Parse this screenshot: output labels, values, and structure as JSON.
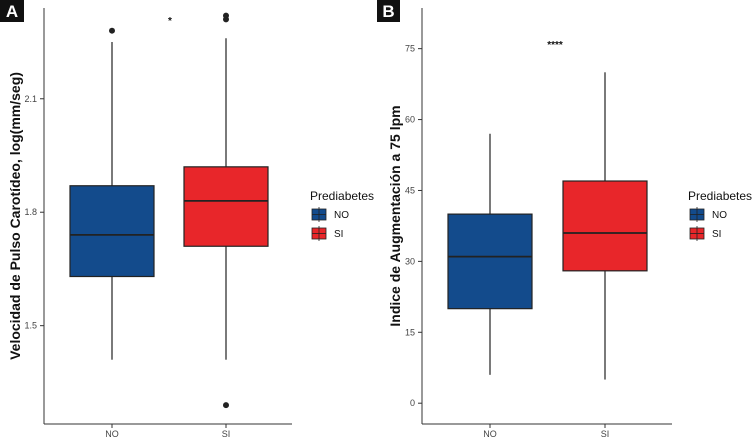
{
  "colors": {
    "NO": "#134b8c",
    "SI": "#e8262a",
    "median": "#222222",
    "axis": "#333333"
  },
  "chart_data": [
    {
      "type": "box",
      "panel_label": "A",
      "ylabel": "Velocidad de Pulso Carotídeo, log(mm/seg)",
      "categories": [
        "NO",
        "SI"
      ],
      "ylim": [
        1.24,
        2.34
      ],
      "yticks": [
        1.5,
        1.8,
        2.1
      ],
      "ytick_labels": [
        "1.5",
        "1.8",
        "2.1"
      ],
      "legend": {
        "title": "Prediabetes",
        "entries": [
          "NO",
          "SI"
        ],
        "position": "right"
      },
      "significance": "*",
      "boxes": [
        {
          "category": "NO",
          "whisker_low": 1.41,
          "q1": 1.63,
          "median": 1.74,
          "q3": 1.87,
          "whisker_high": 2.25,
          "outliers": [
            2.28
          ]
        },
        {
          "category": "SI",
          "whisker_low": 1.41,
          "q1": 1.71,
          "median": 1.83,
          "q3": 1.92,
          "whisker_high": 2.26,
          "outliers": [
            2.31,
            2.32,
            1.29
          ]
        }
      ]
    },
    {
      "type": "box",
      "panel_label": "B",
      "ylabel": "Indice de Augmentación a 75 lpm",
      "categories": [
        "NO",
        "SI"
      ],
      "ylim": [
        -4.4,
        83.6
      ],
      "yticks": [
        0,
        15,
        30,
        45,
        60,
        75
      ],
      "ytick_labels": [
        "0",
        "15",
        "30",
        "45",
        "60",
        "75"
      ],
      "legend": {
        "title": "Prediabetes",
        "entries": [
          "NO",
          "SI"
        ],
        "position": "right"
      },
      "significance": "****",
      "boxes": [
        {
          "category": "NO",
          "whisker_low": 6,
          "q1": 20,
          "median": 31,
          "q3": 40,
          "whisker_high": 57,
          "outliers": []
        },
        {
          "category": "SI",
          "whisker_low": 5,
          "q1": 28,
          "median": 36,
          "q3": 47,
          "whisker_high": 70,
          "outliers": []
        }
      ]
    }
  ]
}
